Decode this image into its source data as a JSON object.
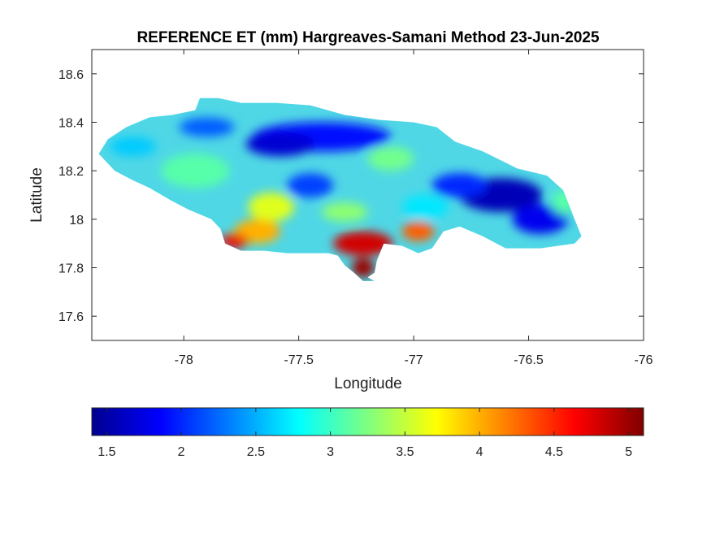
{
  "title": "REFERENCE ET (mm) Hargreaves-Samani Method  23-Jun-2025",
  "map": {
    "xlabel": "Longitude",
    "ylabel": "Latitude",
    "xlim": [
      -78.4,
      -76
    ],
    "ylim": [
      17.5,
      18.7
    ],
    "x_ticks": [
      "-78",
      "-77.5",
      "-77",
      "-76.5",
      "-76"
    ],
    "y_ticks": [
      "17.6",
      "17.8",
      "18",
      "18.2",
      "18.4",
      "18.6"
    ],
    "region": "Jamaica",
    "field_min": 1.4,
    "field_max": 5.1,
    "field_description_levels": {
      "north_central_band": 1.8,
      "east_interior": 1.6,
      "south_coast_central": 5.0,
      "southwest_coast": 4.6,
      "west_interior": 3.0
    }
  },
  "colorbar": {
    "colormap": "jet",
    "min": 1.4,
    "max": 5.1,
    "tick_labels": [
      "1.5",
      "2",
      "2.5",
      "3",
      "3.5",
      "4",
      "4.5",
      "5"
    ]
  }
}
